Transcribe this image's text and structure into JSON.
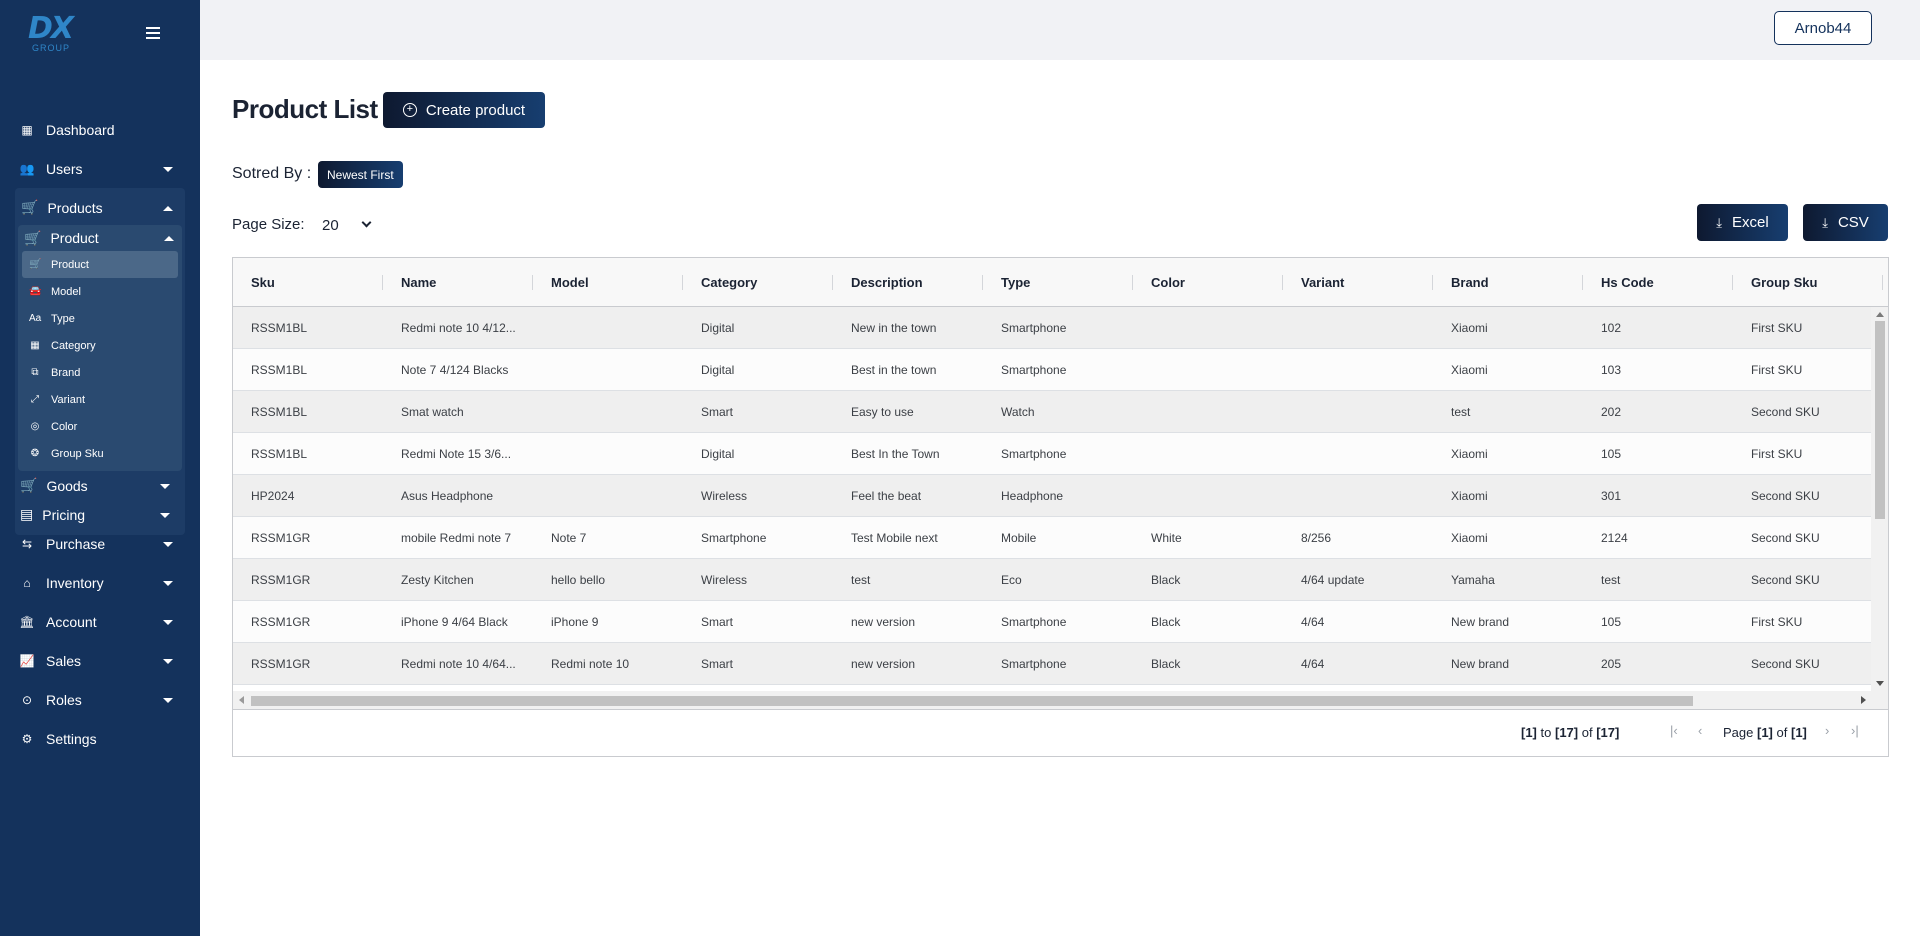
{
  "logo": {
    "mark": "DX",
    "sub": "GROUP"
  },
  "sidebar": {
    "dashboard": "Dashboard",
    "users": "Users",
    "products": "Products",
    "product_group": "Product",
    "product_items": [
      "Product",
      "Model",
      "Type",
      "Category",
      "Brand",
      "Variant",
      "Color",
      "Group Sku"
    ],
    "goods": "Goods",
    "pricing": "Pricing",
    "purchase": "Purchase",
    "inventory": "Inventory",
    "account": "Account",
    "sales": "Sales",
    "roles": "Roles",
    "settings": "Settings"
  },
  "header": {
    "user": "Arnob44"
  },
  "page": {
    "title": "Product List",
    "create_label": "Create product",
    "sorted_label": "Sotred By :",
    "sort_value": "Newest First",
    "page_size_label": "Page Size:",
    "page_size": "20",
    "excel_label": "Excel",
    "csv_label": "CSV"
  },
  "table": {
    "columns": [
      "Sku",
      "Name",
      "Model",
      "Category",
      "Description",
      "Type",
      "Color",
      "Variant",
      "Brand",
      "Hs Code",
      "Group Sku"
    ],
    "rows": [
      [
        "RSSM1BL",
        "Redmi note 10 4/12...",
        "",
        "Digital",
        "New in the town",
        "Smartphone",
        "",
        "",
        "Xiaomi",
        "102",
        "First SKU"
      ],
      [
        "RSSM1BL",
        "Note 7 4/124 Blacks",
        "",
        "Digital",
        "Best in the town",
        "Smartphone",
        "",
        "",
        "Xiaomi",
        "103",
        "First SKU"
      ],
      [
        "RSSM1BL",
        "Smat watch",
        "",
        "Smart",
        "Easy to use",
        "Watch",
        "",
        "",
        "test",
        "202",
        "Second SKU"
      ],
      [
        "RSSM1BL",
        "Redmi Note 15 3/6...",
        "",
        "Digital",
        "Best In the Town",
        "Smartphone",
        "",
        "",
        "Xiaomi",
        "105",
        "First SKU"
      ],
      [
        "HP2024",
        "Asus Headphone",
        "",
        "Wireless",
        "Feel the beat",
        "Headphone",
        "",
        "",
        "Xiaomi",
        "301",
        "Second SKU"
      ],
      [
        "RSSM1GR",
        "mobile Redmi note 7",
        "Note 7",
        "Smartphone",
        "Test Mobile next",
        "Mobile",
        "White",
        "8/256",
        "Xiaomi",
        "2124",
        "Second SKU"
      ],
      [
        "RSSM1GR",
        "Zesty Kitchen",
        "hello bello",
        "Wireless",
        "test",
        "Eco",
        "Black",
        "4/64 update",
        "Yamaha",
        "test",
        "Second SKU"
      ],
      [
        "RSSM1GR",
        "iPhone 9 4/64 Black",
        "iPhone 9",
        "Smart",
        "new version",
        "Smartphone",
        "Black",
        "4/64",
        "New brand",
        "105",
        "First SKU"
      ],
      [
        "RSSM1GR",
        "Redmi note 10 4/64...",
        "Redmi note 10",
        "Smart",
        "new version",
        "Smartphone",
        "Black",
        "4/64",
        "New brand",
        "205",
        "Second SKU"
      ]
    ]
  },
  "pagination": {
    "from": "[1]",
    "to_word": "to",
    "to": "[17]",
    "of_word": "of",
    "total": "[17]",
    "page_word": "Page",
    "page": "[1]",
    "page_of_word": "of",
    "pages": "[1]"
  }
}
